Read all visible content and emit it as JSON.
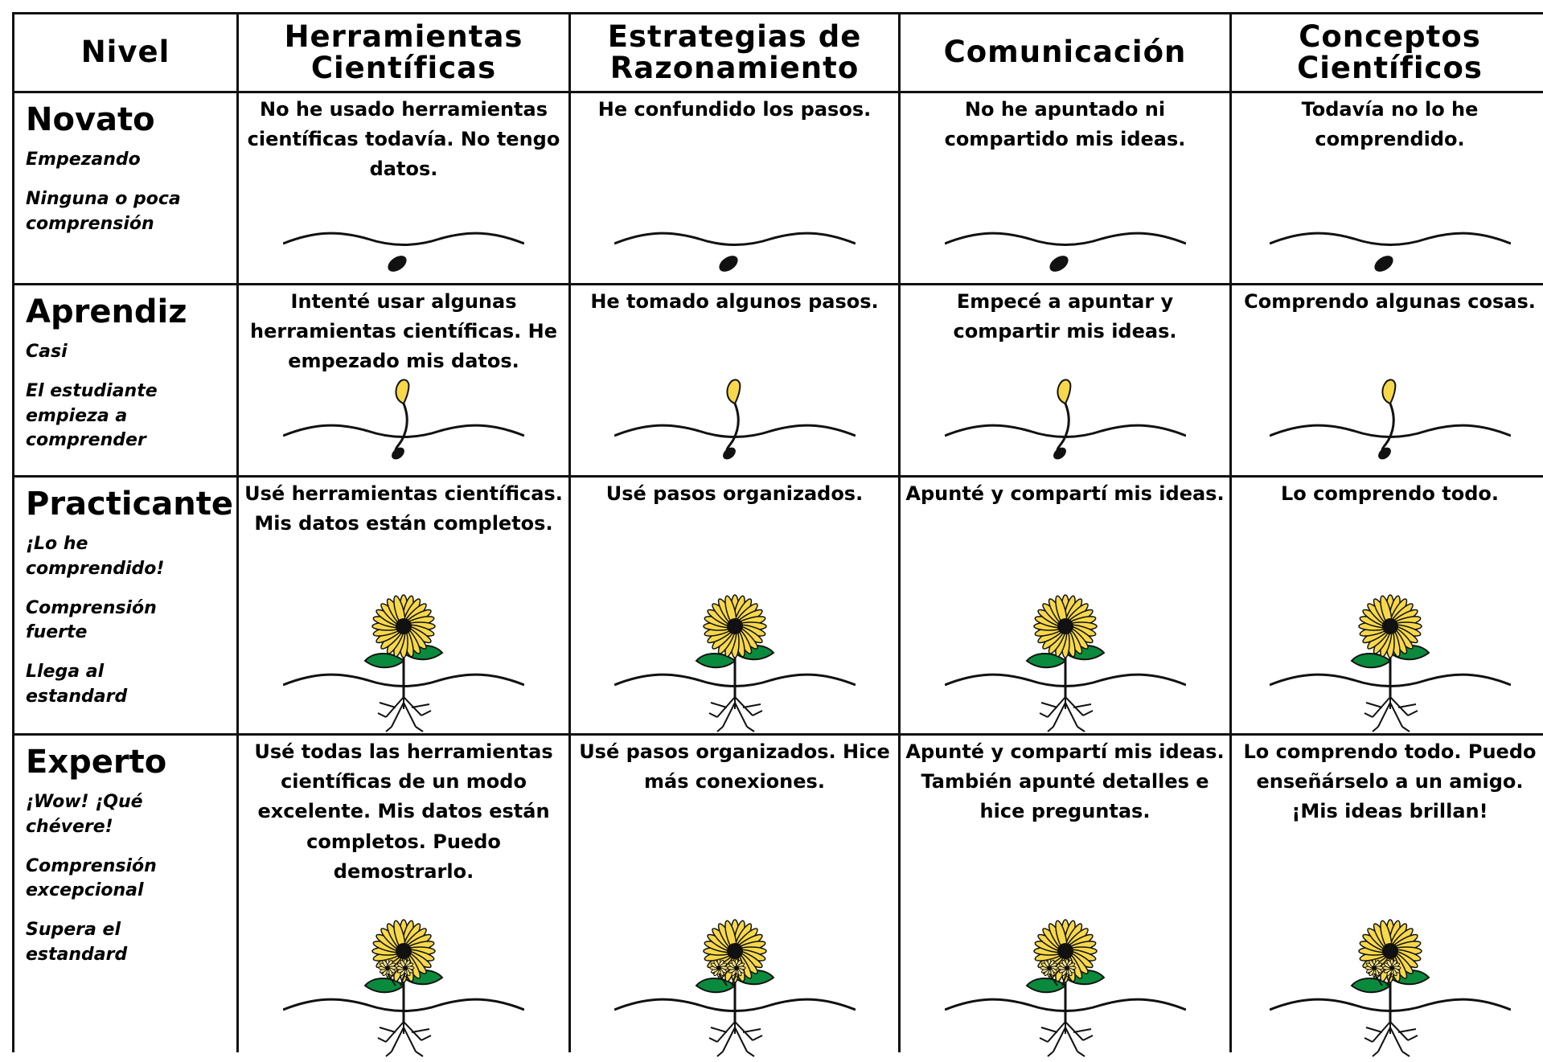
{
  "header": {
    "columns": [
      [
        "Nivel"
      ],
      [
        "Herramientas",
        "Científicas"
      ],
      [
        "Estrategias de",
        "Razonamiento"
      ],
      [
        "Comunicación"
      ],
      [
        "Conceptos",
        "Científicos"
      ]
    ]
  },
  "rows": [
    {
      "level": "Novato",
      "descriptors": [
        "Empezando",
        "Ninguna o poca comprensión"
      ],
      "cells": [
        "No he usado herramientas científicas todavía. No tengo datos.",
        "He confundido los pasos.",
        "No he apuntado ni compartido mis ideas.",
        "Todavía no lo he comprendido."
      ]
    },
    {
      "level": "Aprendiz",
      "descriptors": [
        "Casi",
        "El estudiante empieza a comprender"
      ],
      "cells": [
        "Intenté usar algunas herramientas científicas. He empezado mis datos.",
        "He tomado algunos pasos.",
        "Empecé a apuntar y compartir mis ideas.",
        "Comprendo algunas cosas."
      ]
    },
    {
      "level": "Practicante",
      "descriptors": [
        "¡Lo he comprendido!",
        "Comprensión fuerte",
        "Llega al estandard"
      ],
      "cells": [
        "Usé herramientas científicas. Mis datos están completos.",
        "Usé pasos organizados.",
        "Apunté y compartí mis ideas.",
        "Lo comprendo todo."
      ]
    },
    {
      "level": "Experto",
      "descriptors": [
        "¡Wow! ¡Qué chévere!",
        "Comprensión excepcional",
        "Supera el estandard"
      ],
      "cells": [
        "Usé todas las herramientas científicas de un modo excelente. Mis datos están completos. Puedo demostrarlo.",
        "Usé pasos organizados. Hice más conexiones.",
        "Apunté y compartí mis ideas. También apunté detalles e hice preguntas.",
        "Lo comprendo todo. Puedo enseñárselo a un amigo. ¡Mis ideas brillan!"
      ]
    }
  ]
}
